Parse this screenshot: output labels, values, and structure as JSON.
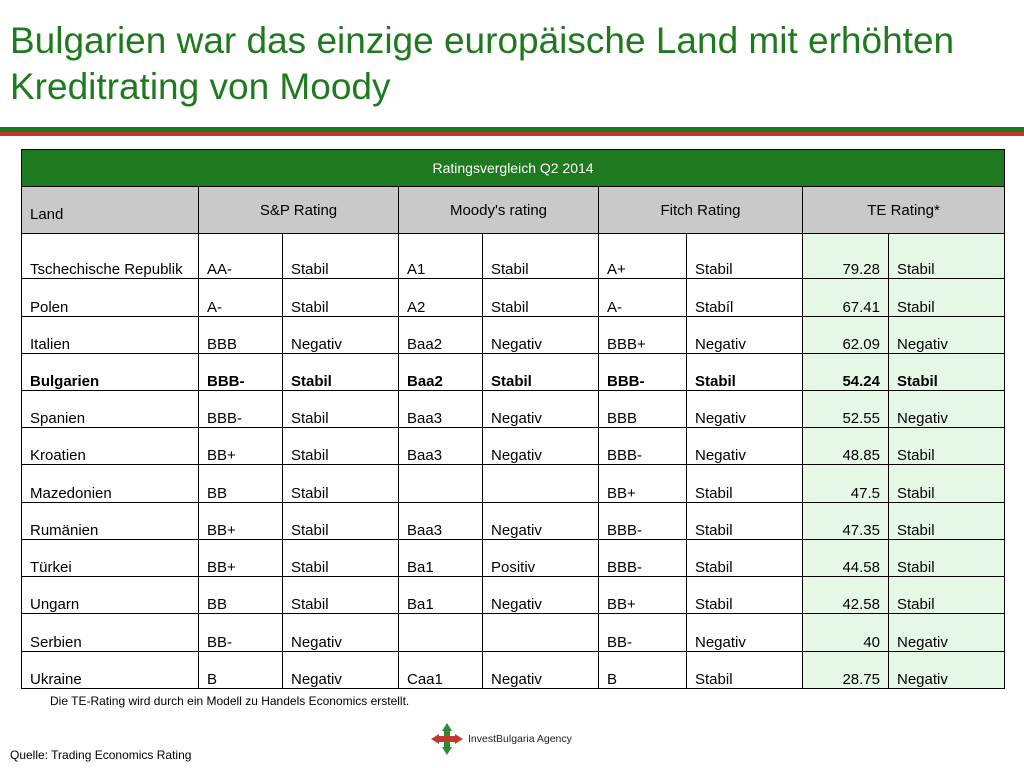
{
  "title": "Bulgarien war das einzige europäische Land mit erhöhten Kreditrating von Moody",
  "table": {
    "caption": "Ratingsvergleich Q2 2014",
    "headers": [
      "Land",
      "S&P Rating",
      "Moody's rating",
      "Fitch Rating",
      "TE Rating*"
    ],
    "rows": [
      {
        "land": "Tschechische Republik",
        "sp": "AA-",
        "sp_outlook": "Stabil",
        "moody": "A1",
        "moody_outlook": "Stabil",
        "fitch": "A+",
        "fitch_outlook": "Stabil",
        "te": "79.28",
        "te_outlook": "Stabil"
      },
      {
        "land": "Polen",
        "sp": "A-",
        "sp_outlook": "Stabil",
        "moody": "A2",
        "moody_outlook": "Stabil",
        "fitch": "A-",
        "fitch_outlook": "Stabíl",
        "te": "67.41",
        "te_outlook": "Stabil"
      },
      {
        "land": "Italien",
        "sp": "BBB",
        "sp_outlook": "Negativ",
        "moody": "Baa2",
        "moody_outlook": "Negativ",
        "fitch": "BBB+",
        "fitch_outlook": "Negativ",
        "te": "62.09",
        "te_outlook": "Negativ"
      },
      {
        "land": "Bulgarien",
        "sp": "BBB-",
        "sp_outlook": "Stabil",
        "moody": "Baa2",
        "moody_outlook": "Stabil",
        "fitch": "BBB-",
        "fitch_outlook": "Stabil",
        "te": "54.24",
        "te_outlook": "Stabil"
      },
      {
        "land": "Spanien",
        "sp": "BBB-",
        "sp_outlook": "Stabil",
        "moody": "Baa3",
        "moody_outlook": "Negativ",
        "fitch": "BBB",
        "fitch_outlook": "Negativ",
        "te": "52.55",
        "te_outlook": "Negativ"
      },
      {
        "land": "Kroatien",
        "sp": "BB+",
        "sp_outlook": "Stabil",
        "moody": "Baa3",
        "moody_outlook": "Negativ",
        "fitch": "BBB-",
        "fitch_outlook": "Negativ",
        "te": "48.85",
        "te_outlook": "Stabil"
      },
      {
        "land": "Mazedonien",
        "sp": "BB",
        "sp_outlook": "Stabil",
        "moody": "",
        "moody_outlook": "",
        "fitch": "BB+",
        "fitch_outlook": "Stabil",
        "te": "47.5",
        "te_outlook": "Stabil"
      },
      {
        "land": "Rumänien",
        "sp": "BB+",
        "sp_outlook": "Stabil",
        "moody": "Baa3",
        "moody_outlook": "Negativ",
        "fitch": "BBB-",
        "fitch_outlook": "Stabil",
        "te": "47.35",
        "te_outlook": "Stabil"
      },
      {
        "land": "Türkei",
        "sp": "BB+",
        "sp_outlook": "Stabil",
        "moody": "Ba1",
        "moody_outlook": "Positiv",
        "fitch": "BBB-",
        "fitch_outlook": "Stabil",
        "te": "44.58",
        "te_outlook": "Stabil"
      },
      {
        "land": "Ungarn",
        "sp": "BB",
        "sp_outlook": "Stabil",
        "moody": "Ba1",
        "moody_outlook": "Negativ",
        "fitch": "BB+",
        "fitch_outlook": "Stabil",
        "te": "42.58",
        "te_outlook": "Stabil"
      },
      {
        "land": "Serbien",
        "sp": "BB-",
        "sp_outlook": "Negativ",
        "moody": "",
        "moody_outlook": "",
        "fitch": "BB-",
        "fitch_outlook": "Negativ",
        "te": "40",
        "te_outlook": "Negativ"
      },
      {
        "land": "Ukraine",
        "sp": "B",
        "sp_outlook": "Negativ",
        "moody": "Caa1",
        "moody_outlook": "Negativ",
        "fitch": "B",
        "fitch_outlook": "Stabil",
        "te": "28.75",
        "te_outlook": "Negativ"
      }
    ]
  },
  "footnote": "Die TE-Rating wird durch ein Modell zu Handels Economics erstellt.",
  "source": "Quelle: Trading Economics Rating",
  "logo": {
    "text": "InvestBulgaria Agency",
    "icon": "investbulgaria-logo-icon"
  },
  "colors": {
    "title": "#1f7a1f",
    "header": "#1f7a1f",
    "subheader": "#c9c9c9",
    "te_column": "#e6f9e6",
    "divider_green": "#1a7a1a",
    "divider_red": "#c0392b"
  }
}
